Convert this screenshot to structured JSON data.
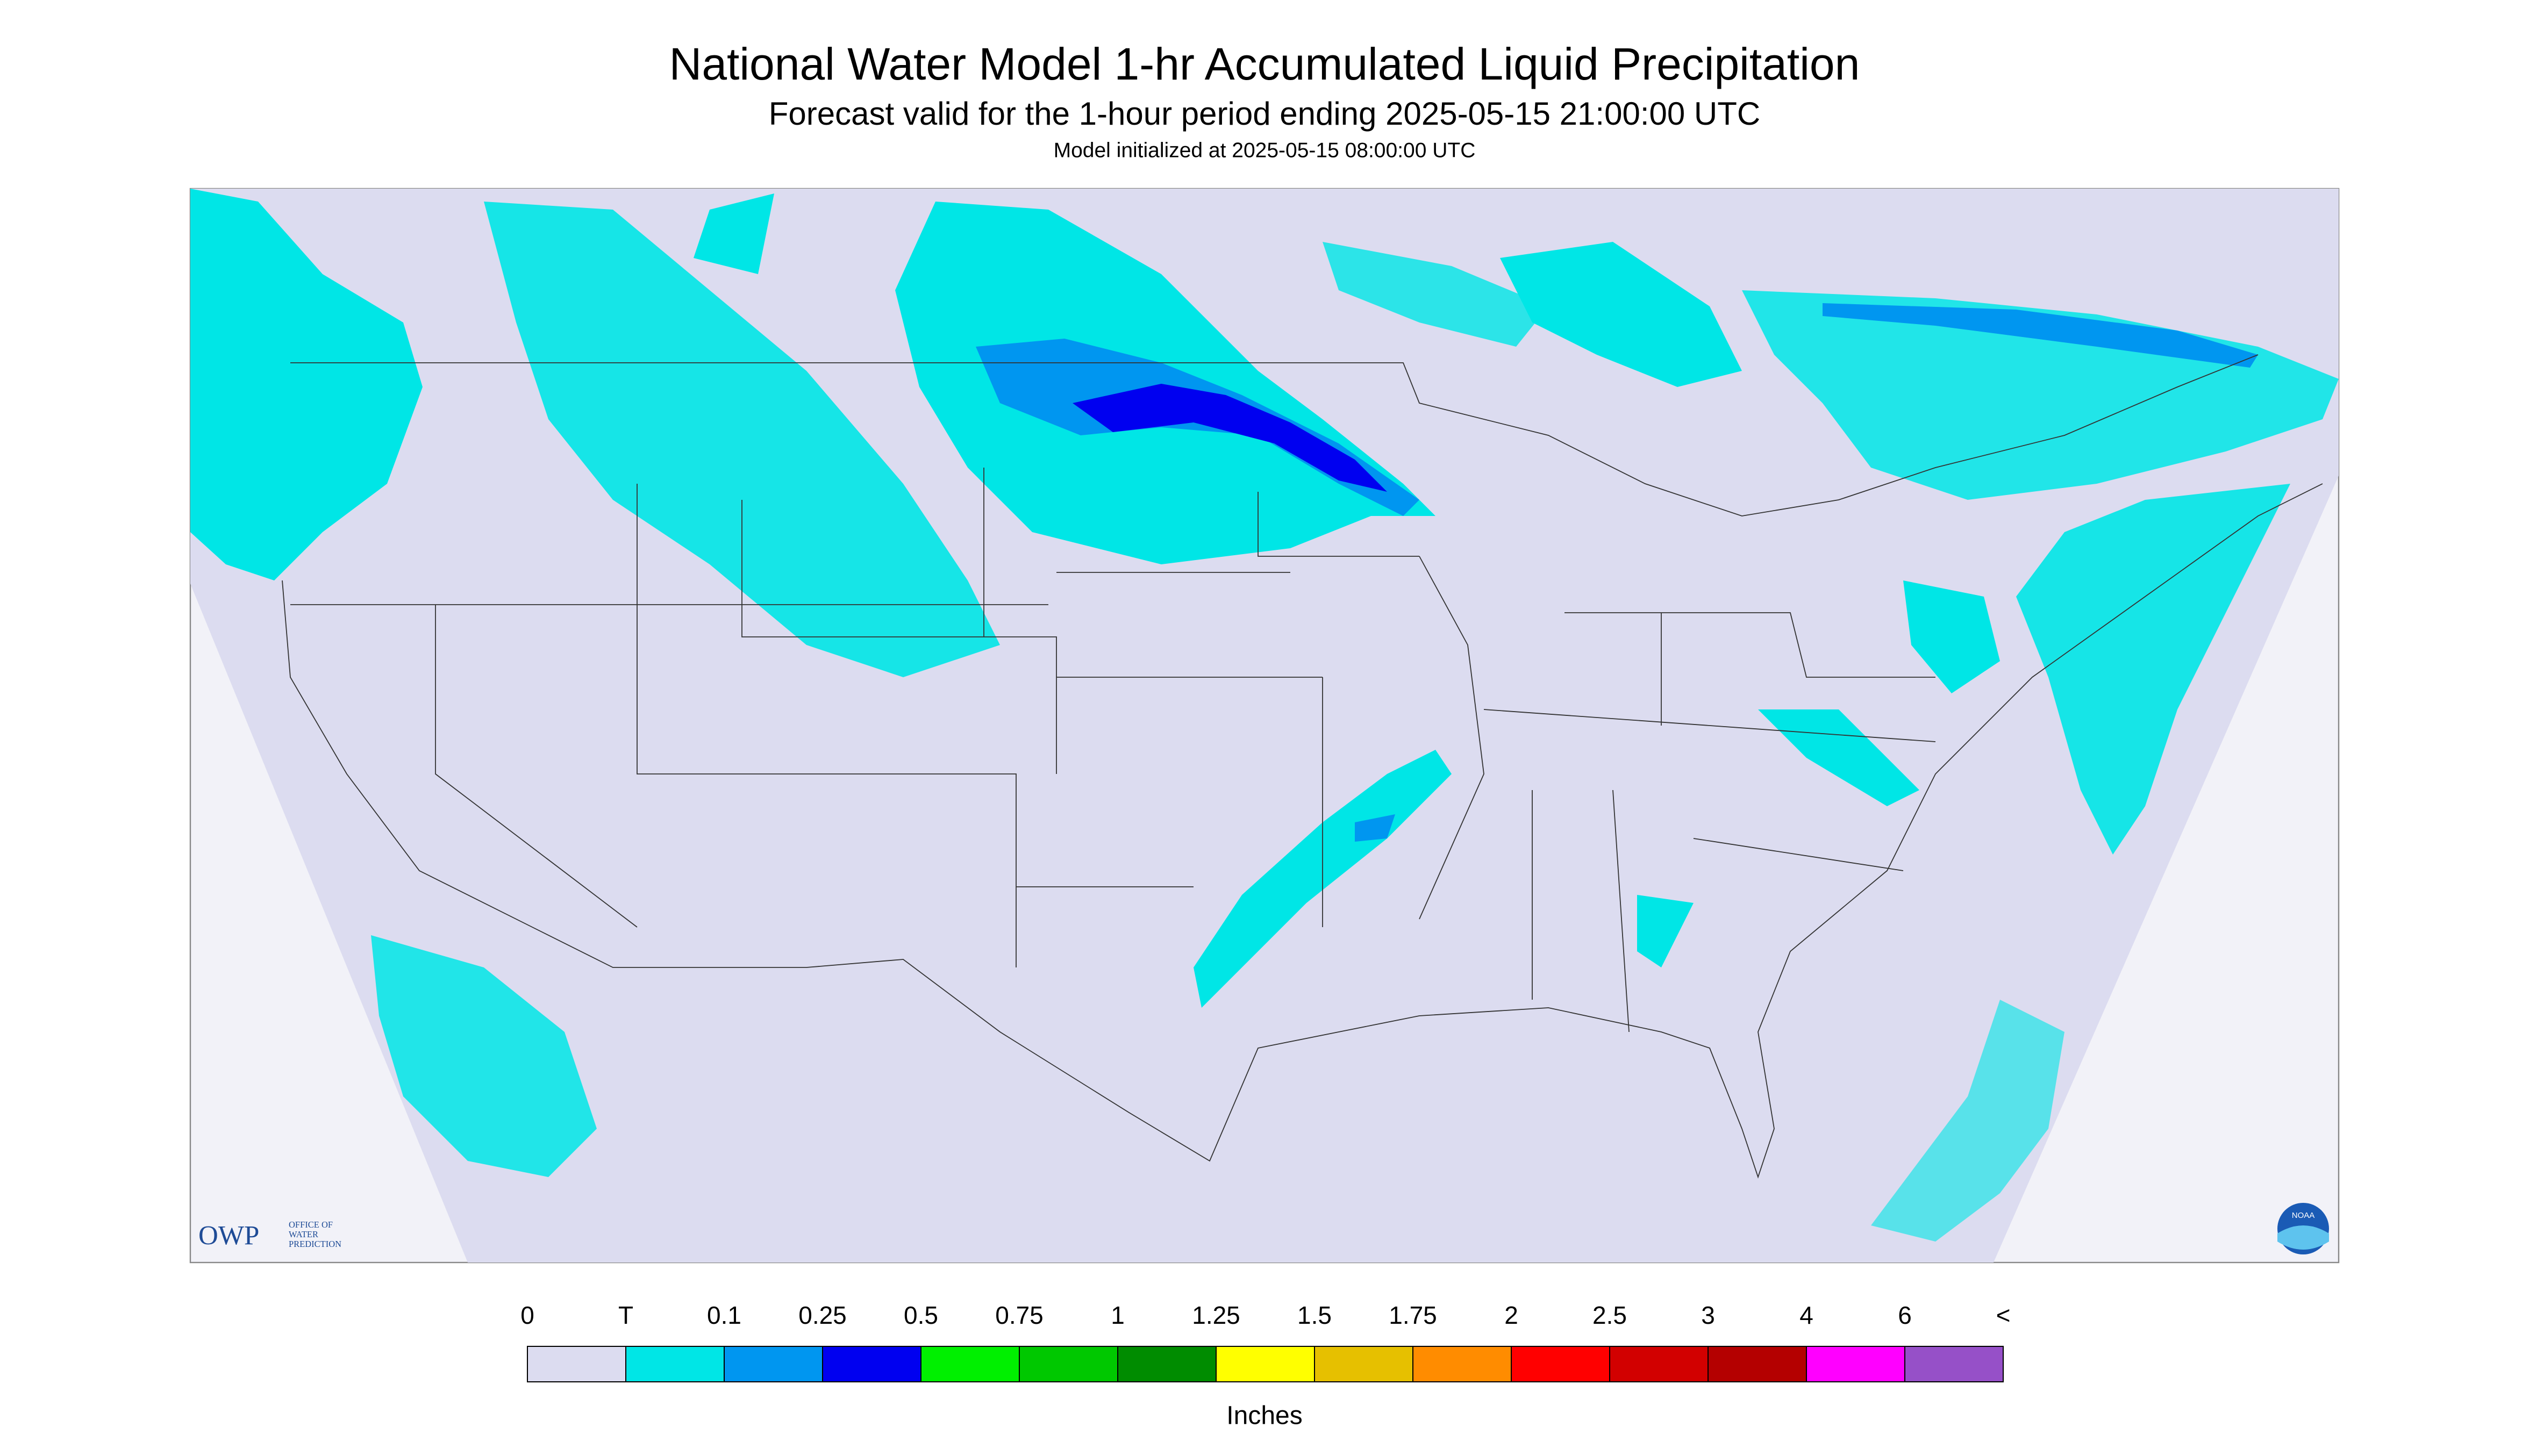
{
  "header": {
    "title": "National Water Model 1-hr Accumulated Liquid Precipitation",
    "subtitle": "Forecast valid for the 1-hour period ending 2025-05-15 21:00:00 UTC",
    "initialized": "Model initialized at 2025-05-15 08:00:00 UTC"
  },
  "legend": {
    "labels": [
      "0",
      "T",
      "0.1",
      "0.25",
      "0.5",
      "0.75",
      "1",
      "1.25",
      "1.5",
      "1.75",
      "2",
      "2.5",
      "3",
      "4",
      "6",
      "<"
    ],
    "colors": [
      "#dcdcf0",
      "#00e6e6",
      "#0096f0",
      "#0000f0",
      "#00f000",
      "#00c800",
      "#008c00",
      "#ffff00",
      "#e6c000",
      "#ff8c00",
      "#ff0000",
      "#d20000",
      "#b40000",
      "#ff00ff",
      "#9650c8"
    ],
    "unit": "Inches"
  },
  "logos": {
    "owp": "OWP",
    "owp_lines": [
      "OFFICE OF",
      "WATER",
      "PREDICTION"
    ],
    "noaa": "NOAA"
  }
}
